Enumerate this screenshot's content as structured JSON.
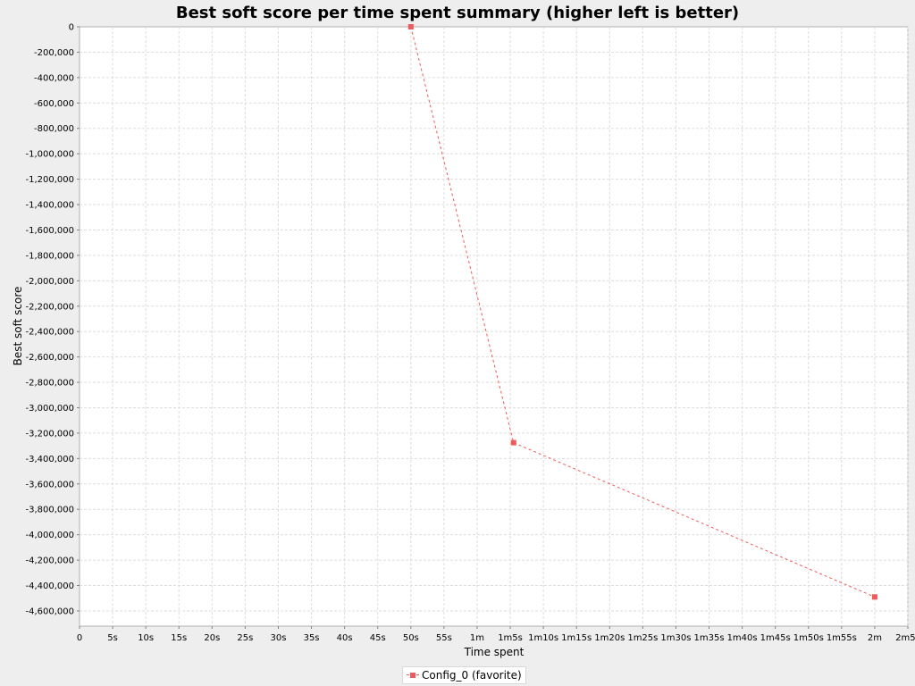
{
  "chart_data": {
    "type": "line",
    "title": "Best soft score per time spent summary (higher left is better)",
    "xlabel": "Time spent",
    "ylabel": "Best soft score",
    "xlim": [
      0,
      125
    ],
    "ylim": [
      -4720000,
      0
    ],
    "x_ticks": [
      {
        "value": 0,
        "label": "0"
      },
      {
        "value": 5,
        "label": "5s"
      },
      {
        "value": 10,
        "label": "10s"
      },
      {
        "value": 15,
        "label": "15s"
      },
      {
        "value": 20,
        "label": "20s"
      },
      {
        "value": 25,
        "label": "25s"
      },
      {
        "value": 30,
        "label": "30s"
      },
      {
        "value": 35,
        "label": "35s"
      },
      {
        "value": 40,
        "label": "40s"
      },
      {
        "value": 45,
        "label": "45s"
      },
      {
        "value": 50,
        "label": "50s"
      },
      {
        "value": 55,
        "label": "55s"
      },
      {
        "value": 60,
        "label": "1m"
      },
      {
        "value": 65,
        "label": "1m5s"
      },
      {
        "value": 70,
        "label": "1m10s"
      },
      {
        "value": 75,
        "label": "1m15s"
      },
      {
        "value": 80,
        "label": "1m20s"
      },
      {
        "value": 85,
        "label": "1m25s"
      },
      {
        "value": 90,
        "label": "1m30s"
      },
      {
        "value": 95,
        "label": "1m35s"
      },
      {
        "value": 100,
        "label": "1m40s"
      },
      {
        "value": 105,
        "label": "1m45s"
      },
      {
        "value": 110,
        "label": "1m50s"
      },
      {
        "value": 115,
        "label": "1m55s"
      },
      {
        "value": 120,
        "label": "2m"
      },
      {
        "value": 125,
        "label": "2m5s"
      }
    ],
    "y_ticks": [
      {
        "value": 0,
        "label": "0"
      },
      {
        "value": -200000,
        "label": "-200,000"
      },
      {
        "value": -400000,
        "label": "-400,000"
      },
      {
        "value": -600000,
        "label": "-600,000"
      },
      {
        "value": -800000,
        "label": "-800,000"
      },
      {
        "value": -1000000,
        "label": "-1,000,000"
      },
      {
        "value": -1200000,
        "label": "-1,200,000"
      },
      {
        "value": -1400000,
        "label": "-1,400,000"
      },
      {
        "value": -1600000,
        "label": "-1,600,000"
      },
      {
        "value": -1800000,
        "label": "-1,800,000"
      },
      {
        "value": -2000000,
        "label": "-2,000,000"
      },
      {
        "value": -2200000,
        "label": "-2,200,000"
      },
      {
        "value": -2400000,
        "label": "-2,400,000"
      },
      {
        "value": -2600000,
        "label": "-2,600,000"
      },
      {
        "value": -2800000,
        "label": "-2,800,000"
      },
      {
        "value": -3000000,
        "label": "-3,000,000"
      },
      {
        "value": -3200000,
        "label": "-3,200,000"
      },
      {
        "value": -3400000,
        "label": "-3,400,000"
      },
      {
        "value": -3600000,
        "label": "-3,600,000"
      },
      {
        "value": -3800000,
        "label": "-3,800,000"
      },
      {
        "value": -4000000,
        "label": "-4,000,000"
      },
      {
        "value": -4200000,
        "label": "-4,200,000"
      },
      {
        "value": -4400000,
        "label": "-4,400,000"
      },
      {
        "value": -4600000,
        "label": "-4,600,000"
      }
    ],
    "grid": true,
    "legend_position": "bottom-center",
    "series": [
      {
        "name": "Config_0 (favorite)",
        "color": "#f05a5a",
        "line_style": "dashed",
        "marker": "square",
        "points": [
          {
            "x": 50,
            "y": 0
          },
          {
            "x": 65.5,
            "y": -3275000
          },
          {
            "x": 120,
            "y": -4490000
          }
        ]
      }
    ]
  }
}
